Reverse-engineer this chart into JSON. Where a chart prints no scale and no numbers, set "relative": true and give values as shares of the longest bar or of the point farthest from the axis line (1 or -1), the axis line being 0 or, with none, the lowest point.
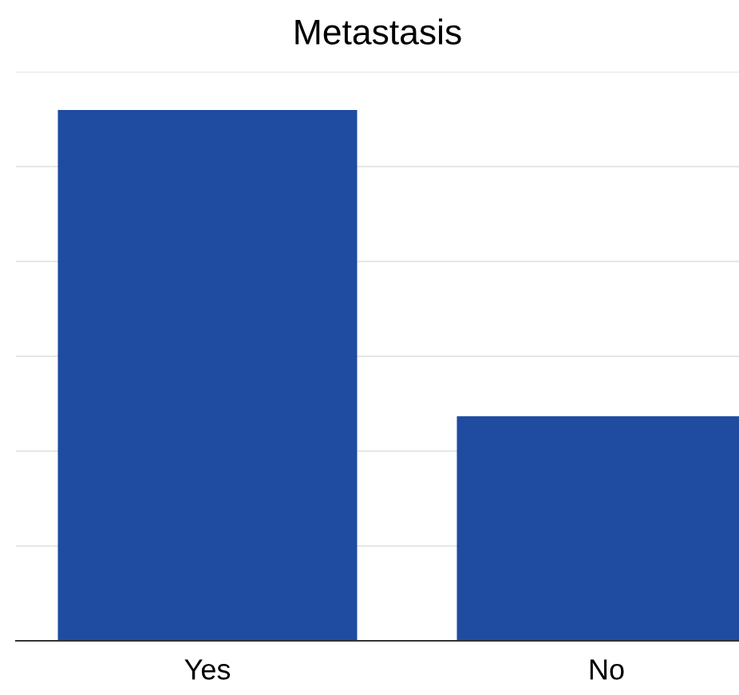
{
  "chart_data": {
    "type": "bar",
    "title": "Metastasis",
    "categories": [
      "Yes",
      "No"
    ],
    "values": [
      1,
      0.423
    ],
    "color": "#1f4ba0",
    "relative": true,
    "grid": "y",
    "legend": false
  }
}
